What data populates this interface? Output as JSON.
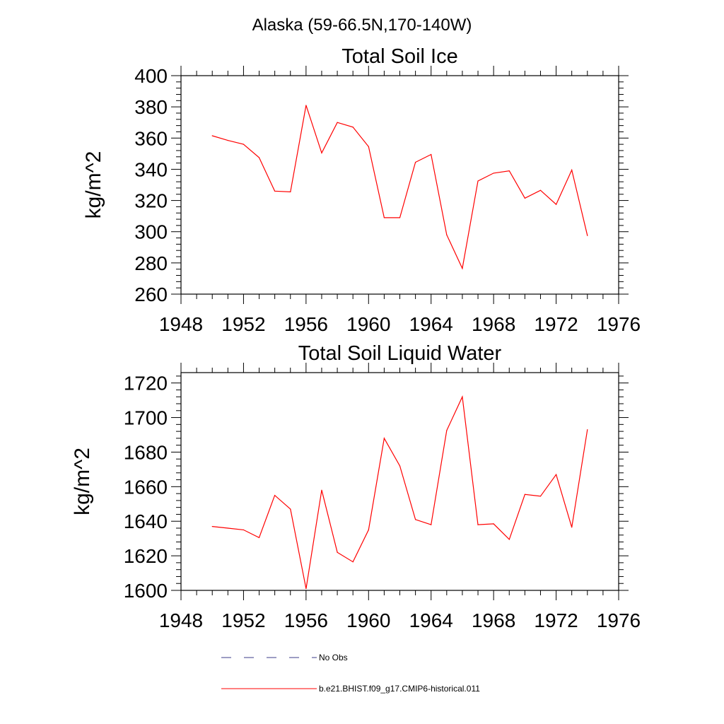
{
  "page_title": "Alaska (59-66.5N,170-140W)",
  "colors": {
    "series": "#ff0000",
    "obs": "#3b3b8a",
    "axis": "#000000"
  },
  "legend": {
    "items": [
      {
        "label": "No Obs",
        "style": "dashed",
        "color": "#3b3b8a"
      },
      {
        "label": "b.e21.BHIST.f09_g17.CMIP6-historical.011",
        "style": "solid",
        "color": "#ff0000"
      }
    ]
  },
  "chart_data": [
    {
      "type": "line",
      "title": "Total Soil Ice",
      "xlabel": "",
      "ylabel": "kg/m^2",
      "xlim": [
        1948,
        1976
      ],
      "ylim": [
        260,
        400
      ],
      "xticks": [
        1948,
        1952,
        1956,
        1960,
        1964,
        1968,
        1972,
        1976
      ],
      "yticks": [
        260,
        280,
        300,
        320,
        340,
        360,
        380,
        400
      ],
      "grid": false,
      "x": [
        1950,
        1951,
        1952,
        1953,
        1954,
        1955,
        1956,
        1957,
        1958,
        1959,
        1960,
        1961,
        1962,
        1963,
        1964,
        1965,
        1966,
        1967,
        1968,
        1969,
        1970,
        1971,
        1972,
        1973,
        1974
      ],
      "series": [
        {
          "values": [
            361.5,
            358.5,
            356,
            347.5,
            326,
            325.5,
            381,
            350.5,
            370,
            367,
            354.5,
            309,
            309,
            344.5,
            349.5,
            298,
            276.5,
            332.5,
            337.5,
            339,
            321.5,
            326.5,
            317.5,
            339.5,
            297.5
          ]
        }
      ]
    },
    {
      "type": "line",
      "title": "Total Soil Liquid Water",
      "xlabel": "",
      "ylabel": "kg/m^2",
      "xlim": [
        1948,
        1976
      ],
      "ylim": [
        1600,
        1726
      ],
      "xticks": [
        1948,
        1952,
        1956,
        1960,
        1964,
        1968,
        1972,
        1976
      ],
      "yticks": [
        1600,
        1620,
        1640,
        1660,
        1680,
        1700,
        1720
      ],
      "grid": false,
      "x": [
        1950,
        1951,
        1952,
        1953,
        1954,
        1955,
        1956,
        1957,
        1958,
        1959,
        1960,
        1961,
        1962,
        1963,
        1964,
        1965,
        1966,
        1967,
        1968,
        1969,
        1970,
        1971,
        1972,
        1973,
        1974
      ],
      "series": [
        {
          "values": [
            1637,
            1636,
            1635,
            1630.5,
            1655,
            1647,
            1601,
            1658,
            1622,
            1616.5,
            1635,
            1688,
            1672,
            1641,
            1638,
            1692.5,
            1712,
            1638,
            1638.5,
            1629.5,
            1655.5,
            1654.5,
            1667,
            1636.5,
            1693
          ]
        }
      ]
    }
  ]
}
